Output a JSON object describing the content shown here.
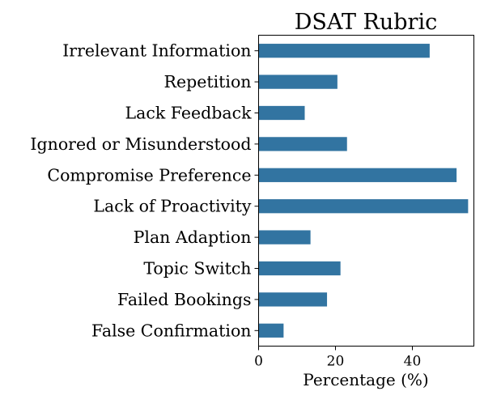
{
  "chart_data": {
    "type": "bar",
    "orientation": "horizontal",
    "title": "DSAT Rubric",
    "xlabel": "Percentage (%)",
    "ylabel": "",
    "categories": [
      "Irrelevant Information",
      "Repetition",
      "Lack Feedback",
      "Ignored or Misunderstood",
      "Compromise Preference",
      "Lack of Proactivity",
      "Plan Adaption",
      "Topic Switch",
      "Failed Bookings",
      "False Confirmation"
    ],
    "values": [
      44.5,
      20.5,
      12.0,
      23.0,
      51.5,
      54.5,
      13.5,
      21.3,
      17.8,
      6.5
    ],
    "xlim": [
      0,
      56
    ],
    "xticks": [
      0,
      20,
      40
    ],
    "grid": false,
    "bar_color": "#3274a1"
  }
}
